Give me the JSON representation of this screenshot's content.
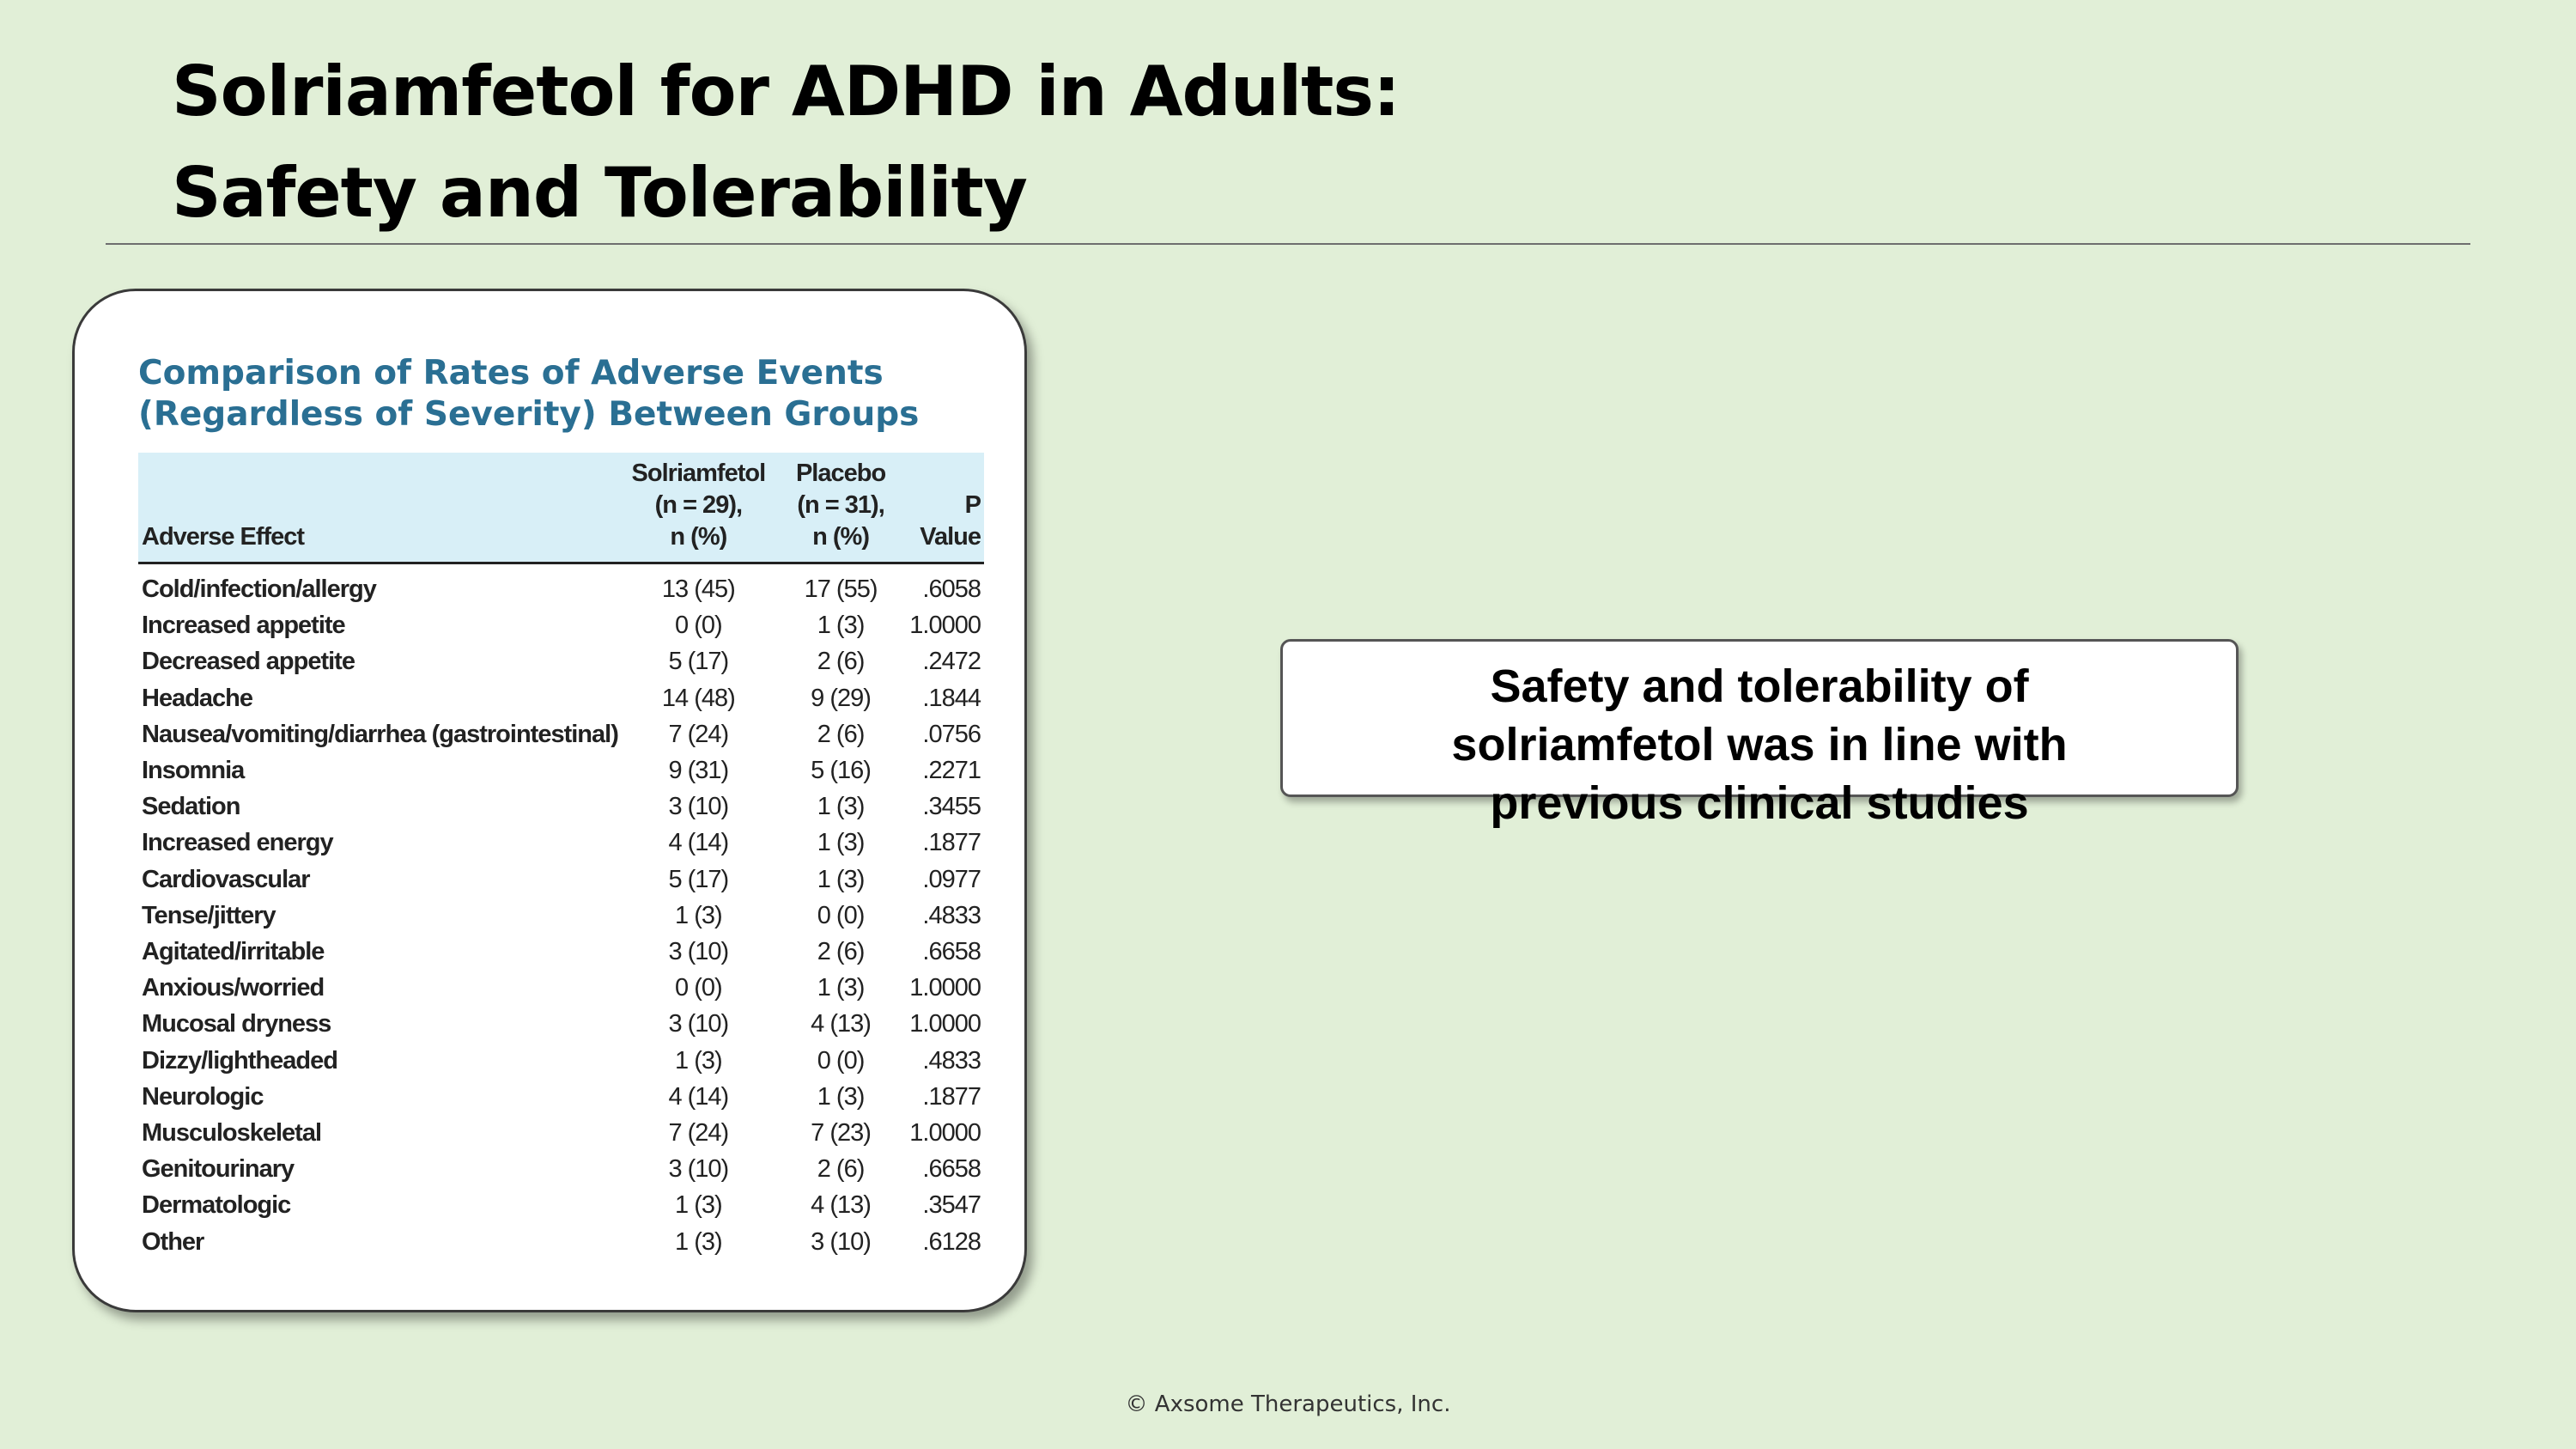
{
  "slide": {
    "title_line1": "Solriamfetol for ADHD in Adults:",
    "title_line2": "Safety and Tolerability"
  },
  "table": {
    "title_line1": "Comparison of Rates of Adverse Events",
    "title_line2": "(Regardless of Severity) Between Groups",
    "headers": {
      "effect": "Adverse Effect",
      "sol_line1": "Solriamfetol",
      "sol_line2": "(n = 29),",
      "sol_line3": "n (%)",
      "plc_line1": "Placebo",
      "plc_line2": "(n = 31),",
      "plc_line3": "n (%)",
      "p": "P Value"
    },
    "rows": [
      {
        "effect": "Cold/infection/allergy",
        "sol": "13 (45)",
        "plc": "17 (55)",
        "p": ".6058"
      },
      {
        "effect": "Increased appetite",
        "sol": "0 (0)",
        "plc": "1 (3)",
        "p": "1.0000"
      },
      {
        "effect": "Decreased appetite",
        "sol": "5 (17)",
        "plc": "2 (6)",
        "p": ".2472"
      },
      {
        "effect": "Headache",
        "sol": "14 (48)",
        "plc": "9 (29)",
        "p": ".1844"
      },
      {
        "effect": "Nausea/vomiting/diarrhea (gastrointestinal)",
        "sol": "7 (24)",
        "plc": "2 (6)",
        "p": ".0756"
      },
      {
        "effect": "Insomnia",
        "sol": "9 (31)",
        "plc": "5 (16)",
        "p": ".2271"
      },
      {
        "effect": "Sedation",
        "sol": "3 (10)",
        "plc": "1 (3)",
        "p": ".3455"
      },
      {
        "effect": "Increased energy",
        "sol": "4 (14)",
        "plc": "1 (3)",
        "p": ".1877"
      },
      {
        "effect": "Cardiovascular",
        "sol": "5 (17)",
        "plc": "1 (3)",
        "p": ".0977"
      },
      {
        "effect": "Tense/jittery",
        "sol": "1 (3)",
        "plc": "0 (0)",
        "p": ".4833"
      },
      {
        "effect": "Agitated/irritable",
        "sol": "3 (10)",
        "plc": "2 (6)",
        "p": ".6658"
      },
      {
        "effect": "Anxious/worried",
        "sol": "0 (0)",
        "plc": "1 (3)",
        "p": "1.0000"
      },
      {
        "effect": "Mucosal dryness",
        "sol": "3 (10)",
        "plc": "4 (13)",
        "p": "1.0000"
      },
      {
        "effect": "Dizzy/lightheaded",
        "sol": "1 (3)",
        "plc": "0 (0)",
        "p": ".4833"
      },
      {
        "effect": "Neurologic",
        "sol": "4 (14)",
        "plc": "1 (3)",
        "p": ".1877"
      },
      {
        "effect": "Musculoskeletal",
        "sol": "7 (24)",
        "plc": "7 (23)",
        "p": "1.0000"
      },
      {
        "effect": "Genitourinary",
        "sol": "3 (10)",
        "plc": "2 (6)",
        "p": ".6658"
      },
      {
        "effect": "Dermatologic",
        "sol": "1 (3)",
        "plc": "4 (13)",
        "p": ".3547"
      },
      {
        "effect": "Other",
        "sol": "1 (3)",
        "plc": "3 (10)",
        "p": ".6128"
      }
    ]
  },
  "callout": {
    "line1": "Safety and tolerability of",
    "line2": "solriamfetol was in line with",
    "line3": "previous clinical studies"
  },
  "footer": "© Axsome Therapeutics, Inc.",
  "colors": {
    "background": "#e1efd7",
    "table_title": "#2a6f93",
    "table_header_bg": "#d8eff7"
  }
}
